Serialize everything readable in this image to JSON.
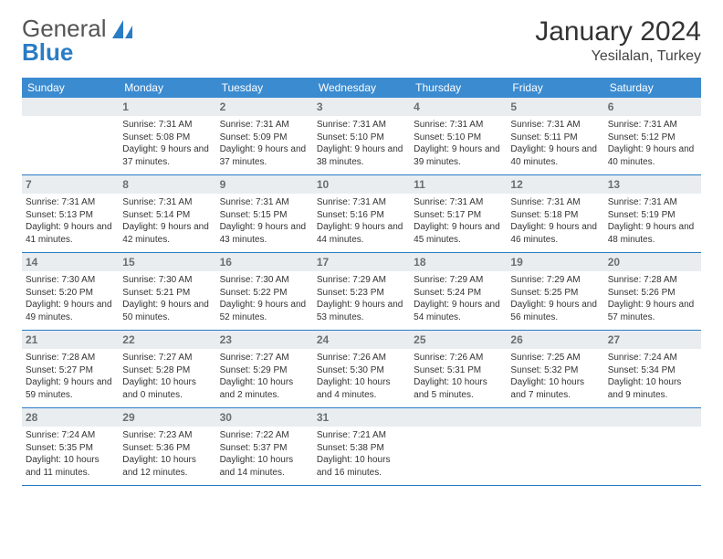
{
  "logo": {
    "word1": "General",
    "word2": "Blue"
  },
  "title": "January 2024",
  "location": "Yesilalan, Turkey",
  "colors": {
    "header_bg": "#3b8bd0",
    "daynum_bg": "#e9edf0",
    "daynum_fg": "#6a6f73",
    "row_border": "#2a7cc4",
    "logo_blue": "#2a7cc4",
    "logo_gray": "#555"
  },
  "weekdays": [
    "Sunday",
    "Monday",
    "Tuesday",
    "Wednesday",
    "Thursday",
    "Friday",
    "Saturday"
  ],
  "weeks": [
    [
      null,
      {
        "n": "1",
        "sr": "7:31 AM",
        "ss": "5:08 PM",
        "dl": "9 hours and 37 minutes."
      },
      {
        "n": "2",
        "sr": "7:31 AM",
        "ss": "5:09 PM",
        "dl": "9 hours and 37 minutes."
      },
      {
        "n": "3",
        "sr": "7:31 AM",
        "ss": "5:10 PM",
        "dl": "9 hours and 38 minutes."
      },
      {
        "n": "4",
        "sr": "7:31 AM",
        "ss": "5:10 PM",
        "dl": "9 hours and 39 minutes."
      },
      {
        "n": "5",
        "sr": "7:31 AM",
        "ss": "5:11 PM",
        "dl": "9 hours and 40 minutes."
      },
      {
        "n": "6",
        "sr": "7:31 AM",
        "ss": "5:12 PM",
        "dl": "9 hours and 40 minutes."
      }
    ],
    [
      {
        "n": "7",
        "sr": "7:31 AM",
        "ss": "5:13 PM",
        "dl": "9 hours and 41 minutes."
      },
      {
        "n": "8",
        "sr": "7:31 AM",
        "ss": "5:14 PM",
        "dl": "9 hours and 42 minutes."
      },
      {
        "n": "9",
        "sr": "7:31 AM",
        "ss": "5:15 PM",
        "dl": "9 hours and 43 minutes."
      },
      {
        "n": "10",
        "sr": "7:31 AM",
        "ss": "5:16 PM",
        "dl": "9 hours and 44 minutes."
      },
      {
        "n": "11",
        "sr": "7:31 AM",
        "ss": "5:17 PM",
        "dl": "9 hours and 45 minutes."
      },
      {
        "n": "12",
        "sr": "7:31 AM",
        "ss": "5:18 PM",
        "dl": "9 hours and 46 minutes."
      },
      {
        "n": "13",
        "sr": "7:31 AM",
        "ss": "5:19 PM",
        "dl": "9 hours and 48 minutes."
      }
    ],
    [
      {
        "n": "14",
        "sr": "7:30 AM",
        "ss": "5:20 PM",
        "dl": "9 hours and 49 minutes."
      },
      {
        "n": "15",
        "sr": "7:30 AM",
        "ss": "5:21 PM",
        "dl": "9 hours and 50 minutes."
      },
      {
        "n": "16",
        "sr": "7:30 AM",
        "ss": "5:22 PM",
        "dl": "9 hours and 52 minutes."
      },
      {
        "n": "17",
        "sr": "7:29 AM",
        "ss": "5:23 PM",
        "dl": "9 hours and 53 minutes."
      },
      {
        "n": "18",
        "sr": "7:29 AM",
        "ss": "5:24 PM",
        "dl": "9 hours and 54 minutes."
      },
      {
        "n": "19",
        "sr": "7:29 AM",
        "ss": "5:25 PM",
        "dl": "9 hours and 56 minutes."
      },
      {
        "n": "20",
        "sr": "7:28 AM",
        "ss": "5:26 PM",
        "dl": "9 hours and 57 minutes."
      }
    ],
    [
      {
        "n": "21",
        "sr": "7:28 AM",
        "ss": "5:27 PM",
        "dl": "9 hours and 59 minutes."
      },
      {
        "n": "22",
        "sr": "7:27 AM",
        "ss": "5:28 PM",
        "dl": "10 hours and 0 minutes."
      },
      {
        "n": "23",
        "sr": "7:27 AM",
        "ss": "5:29 PM",
        "dl": "10 hours and 2 minutes."
      },
      {
        "n": "24",
        "sr": "7:26 AM",
        "ss": "5:30 PM",
        "dl": "10 hours and 4 minutes."
      },
      {
        "n": "25",
        "sr": "7:26 AM",
        "ss": "5:31 PM",
        "dl": "10 hours and 5 minutes."
      },
      {
        "n": "26",
        "sr": "7:25 AM",
        "ss": "5:32 PM",
        "dl": "10 hours and 7 minutes."
      },
      {
        "n": "27",
        "sr": "7:24 AM",
        "ss": "5:34 PM",
        "dl": "10 hours and 9 minutes."
      }
    ],
    [
      {
        "n": "28",
        "sr": "7:24 AM",
        "ss": "5:35 PM",
        "dl": "10 hours and 11 minutes."
      },
      {
        "n": "29",
        "sr": "7:23 AM",
        "ss": "5:36 PM",
        "dl": "10 hours and 12 minutes."
      },
      {
        "n": "30",
        "sr": "7:22 AM",
        "ss": "5:37 PM",
        "dl": "10 hours and 14 minutes."
      },
      {
        "n": "31",
        "sr": "7:21 AM",
        "ss": "5:38 PM",
        "dl": "10 hours and 16 minutes."
      },
      null,
      null,
      null
    ]
  ],
  "labels": {
    "sunrise": "Sunrise:",
    "sunset": "Sunset:",
    "daylight": "Daylight:"
  }
}
